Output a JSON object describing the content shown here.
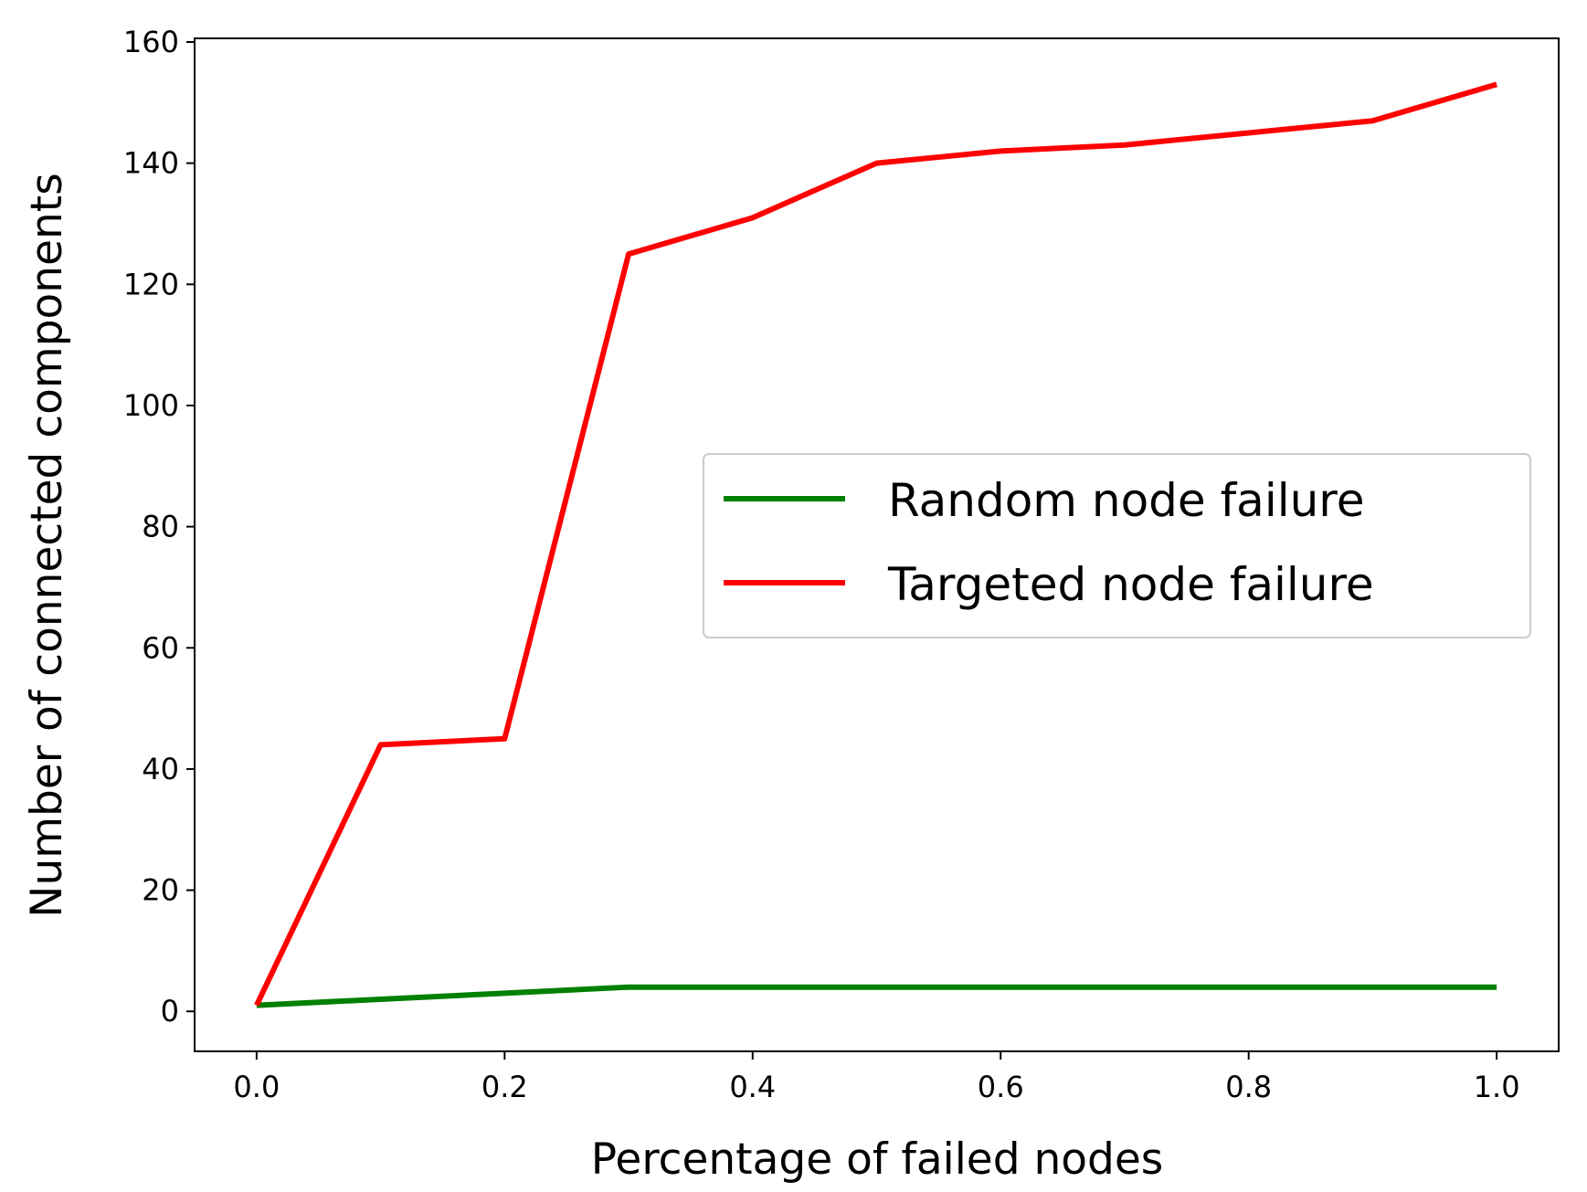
{
  "chart_data": {
    "type": "line",
    "title": "",
    "xlabel": "Percentage of failed nodes",
    "ylabel": "Number of connected components",
    "xlim": [
      -0.05,
      1.05
    ],
    "ylim": [
      -6.6,
      160.6
    ],
    "xticks": [
      0.0,
      0.2,
      0.4,
      0.6,
      0.8,
      1.0
    ],
    "xtick_labels": [
      "0.0",
      "0.2",
      "0.4",
      "0.6",
      "0.8",
      "1.0"
    ],
    "yticks": [
      0,
      20,
      40,
      60,
      80,
      100,
      120,
      140,
      160
    ],
    "ytick_labels": [
      "0",
      "20",
      "40",
      "60",
      "80",
      "100",
      "120",
      "140",
      "160"
    ],
    "grid": false,
    "legend_position": "center-right",
    "x": [
      0.0,
      0.1,
      0.2,
      0.3,
      0.4,
      0.5,
      0.6,
      0.7,
      0.8,
      0.9,
      1.0
    ],
    "series": [
      {
        "name": "Random node failure",
        "color": "#008000",
        "values": [
          1,
          2,
          3,
          4,
          4,
          4,
          4,
          4,
          4,
          4,
          4
        ]
      },
      {
        "name": "Targeted node failure",
        "color": "#ff0000",
        "values": [
          1,
          44,
          45,
          125,
          131,
          140,
          142,
          143,
          145,
          147,
          153
        ]
      }
    ]
  }
}
